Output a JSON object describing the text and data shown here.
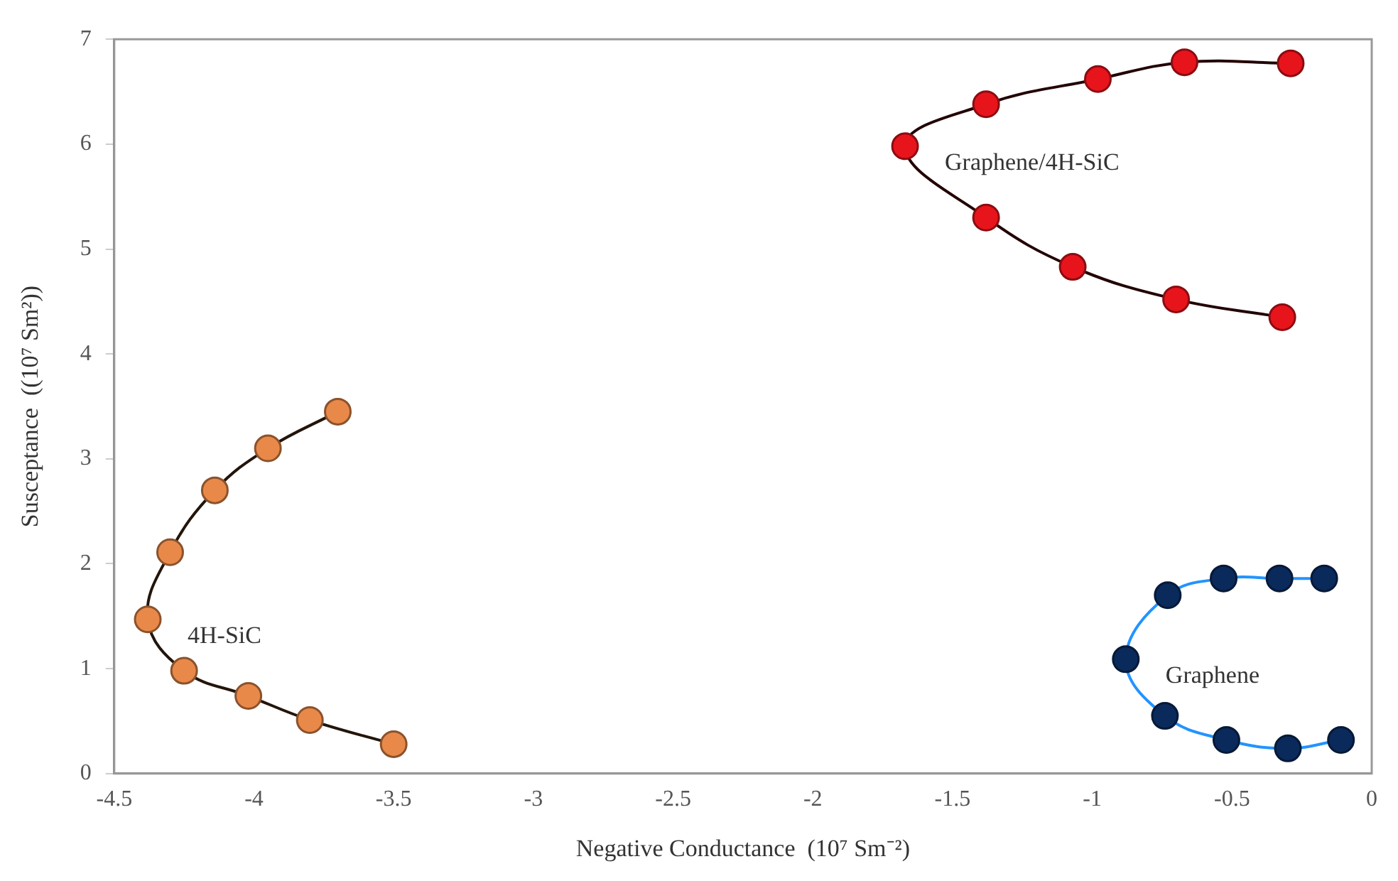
{
  "chart_data": {
    "type": "line",
    "xlabel": "Negative Conductance  (10⁷ Sm⁻²)",
    "ylabel": "Susceptance  ((10⁷ Sm²))",
    "xlim": [
      -4.5,
      0
    ],
    "xticks": [
      -4.5,
      -4,
      -3.5,
      -3,
      -2.5,
      -2,
      -1.5,
      -1,
      -0.5,
      0
    ],
    "ylim": [
      0,
      7
    ],
    "yticks": [
      0,
      1,
      2,
      3,
      4,
      5,
      6,
      7
    ],
    "grid": false,
    "legend": false,
    "marker": "circle",
    "line_style": "solid",
    "series": [
      {
        "name": "4H-SiC",
        "color": "#e8894a",
        "x": [
          -3.7,
          -3.95,
          -4.14,
          -4.3,
          -4.38,
          -4.25,
          -4.02,
          -3.8,
          -3.5
        ],
        "values": [
          3.45,
          3.1,
          2.7,
          2.11,
          1.47,
          0.98,
          0.74,
          0.51,
          0.28
        ]
      },
      {
        "name": "Graphene/4H-SiC",
        "color": "#e8141c",
        "x": [
          -0.29,
          -0.67,
          -0.98,
          -1.38,
          -1.67,
          -1.38,
          -1.07,
          -0.7,
          -0.32
        ],
        "values": [
          6.77,
          6.78,
          6.62,
          6.38,
          5.98,
          5.3,
          4.83,
          4.52,
          4.35
        ]
      },
      {
        "name": "Graphene",
        "color": "#0a2a5c",
        "x": [
          -0.17,
          -0.33,
          -0.53,
          -0.73,
          -0.88,
          -0.74,
          -0.52,
          -0.3,
          -0.11
        ],
        "values": [
          1.86,
          1.86,
          1.86,
          1.7,
          1.09,
          0.55,
          0.32,
          0.24,
          0.32
        ]
      }
    ]
  }
}
